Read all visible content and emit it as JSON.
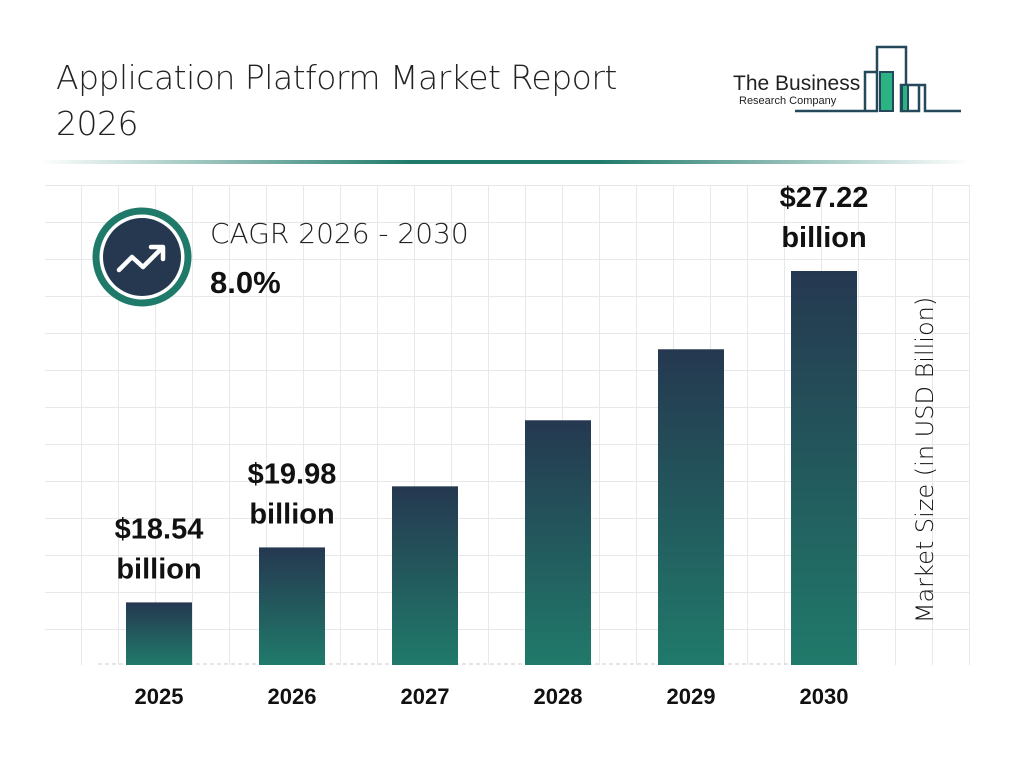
{
  "header": {
    "title": "Application Platform Market Report 2026"
  },
  "logo": {
    "line1": "The Business",
    "line2": "Research Company"
  },
  "cagr": {
    "label": "CAGR 2026 - 2030",
    "value": "8.0%"
  },
  "colors": {
    "bar_top": "#253850",
    "bar_bottom": "#207a6a",
    "accent": "#1f7a6a"
  },
  "chart_data": {
    "type": "bar",
    "categories": [
      "2025",
      "2026",
      "2027",
      "2028",
      "2029",
      "2030"
    ],
    "values": [
      18.54,
      19.98,
      21.58,
      23.31,
      25.17,
      27.22
    ],
    "data_labels": [
      [
        "$18.54",
        "billion"
      ],
      [
        "$19.98",
        "billion"
      ],
      null,
      null,
      null,
      [
        "$27.22",
        "billion"
      ]
    ],
    "title": "",
    "xlabel": "",
    "ylabel": "Market Size (in USD Billion)",
    "grid": true,
    "legend": "none"
  }
}
